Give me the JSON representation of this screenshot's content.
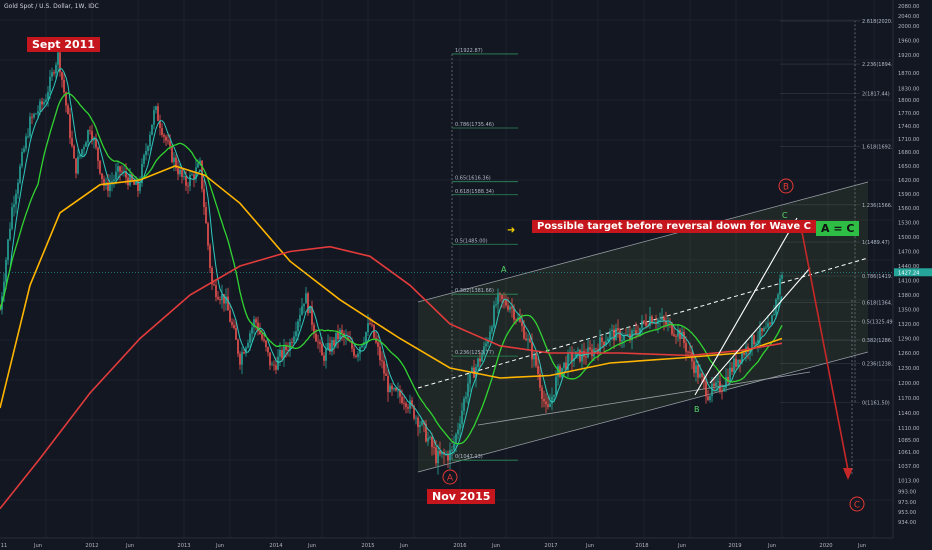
{
  "header": {
    "title": "Gold Spot / U.S. Dollar, 1W, IDC"
  },
  "annotations": {
    "sept2011": "Sept 2011",
    "nov2015": "Nov 2015",
    "target": "Possible target before reversal down for Wave C",
    "a_eq_c": "A = C",
    "wave_b_circle": "B",
    "wave_a_circle": "A",
    "wave_c_circle": "C",
    "wave_a_small": "A",
    "wave_b_small": "B",
    "wave_c_small": "C"
  },
  "colors": {
    "background": "#131722",
    "grid": "#1e2230",
    "candle_up": "#26a69a",
    "candle_down": "#ef5350",
    "ma_yellow": "#ffb400",
    "ma_green": "#31d431",
    "ma_red": "#e23b3b",
    "ma_teal": "#2ec9bd",
    "fib": "#b0bac8",
    "channel": "#9aa0a6",
    "label_red": "#c4161c",
    "label_green": "#2ebd45",
    "price_badge": "#26a69a"
  },
  "chart_data": {
    "type": "candlestick",
    "title": "Gold Spot / U.S. Dollar, 1W, IDC",
    "price_axis": {
      "labels": [
        "2080.00",
        "2040.00",
        "2000.00",
        "1960.00",
        "1920.00",
        "1870.00",
        "1830.00",
        "1800.00",
        "1770.00",
        "1740.00",
        "1710.00",
        "1680.00",
        "1650.00",
        "1620.00",
        "1590.00",
        "1560.00",
        "1530.00",
        "1500.00",
        "1470.00",
        "1440.00",
        "1410.00",
        "1380.00",
        "1350.00",
        "1320.00",
        "1290.00",
        "1260.00",
        "1230.00",
        "1200.00",
        "1170.00",
        "1140.00",
        "1110.00",
        "1085.00",
        "1061.00",
        "1037.00",
        "1013.00",
        "993.00",
        "973.00",
        "953.00",
        "934.00"
      ],
      "current_price": "1427.24",
      "ylim": [
        934,
        2080
      ]
    },
    "time_axis": {
      "labels": [
        "11",
        "Jun",
        "2012",
        "Jun",
        "2013",
        "Jun",
        "2014",
        "Jun",
        "2015",
        "Jun",
        "2016",
        "Jun",
        "2017",
        "Jun",
        "2018",
        "Jun",
        "2019",
        "Jun",
        "2020",
        "Jun"
      ]
    },
    "fib_upper": [
      {
        "label": "1(1922.87)",
        "value": 1922.87
      },
      {
        "label": "0.786(1735.46)",
        "value": 1735.46
      },
      {
        "label": "0.65(1616.36)",
        "value": 1616.36
      },
      {
        "label": "0.618(1588.34)",
        "value": 1588.34
      },
      {
        "label": "0.5(1485.00)",
        "value": 1485.0
      },
      {
        "label": "0.382(1381.66)",
        "value": 1381.66
      },
      {
        "label": "0.236(1253.77)",
        "value": 1253.77
      },
      {
        "label": "0(1047.13)",
        "value": 1047.13
      }
    ],
    "fib_right": [
      {
        "label": "2.618(2020.13)",
        "value": 2020.13
      },
      {
        "label": "2.236(1894.84)",
        "value": 1894.84
      },
      {
        "label": "2(1817.44)",
        "value": 1817.44
      },
      {
        "label": "1.618(1692.16)",
        "value": 1692.16
      },
      {
        "label": "1.236(1566.87)",
        "value": 1566.87
      },
      {
        "label": "1(1489.47)",
        "value": 1489.47
      },
      {
        "label": "0.786(1419.29)",
        "value": 1419.29
      },
      {
        "label": "0.618(1364.19)",
        "value": 1364.19
      },
      {
        "label": "0.5(1325.49)",
        "value": 1325.49
      },
      {
        "label": "0.382(1286.79)",
        "value": 1286.79
      },
      {
        "label": "0.236(1238.90)",
        "value": 1238.9
      },
      {
        "label": "0(1161.50)",
        "value": 1161.5
      }
    ],
    "key_prices": {
      "high_2011": 1920,
      "low_2015": 1047,
      "high_2016": 1375,
      "low_2018": 1160,
      "last": 1427
    }
  }
}
